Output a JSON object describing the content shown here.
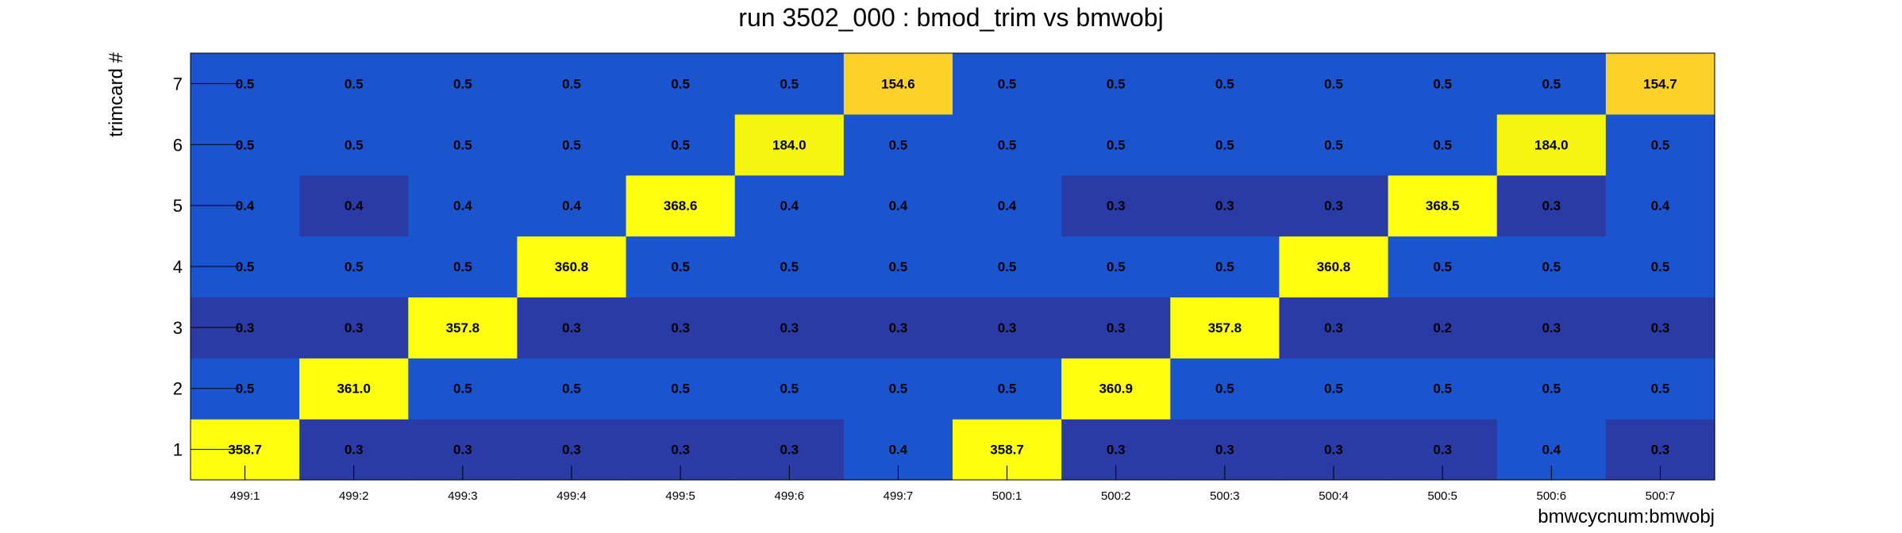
{
  "chart_data": {
    "type": "heatmap",
    "title": "run 3502_000 : bmod_trim vs bmwobj",
    "xlabel": "bmwcycnum:bmwobj",
    "ylabel": "trimcard #",
    "x_categories": [
      "499:1",
      "499:2",
      "499:3",
      "499:4",
      "499:5",
      "499:6",
      "499:7",
      "500:1",
      "500:2",
      "500:3",
      "500:4",
      "500:5",
      "500:6",
      "500:7"
    ],
    "y_categories": [
      "1",
      "2",
      "3",
      "4",
      "5",
      "6",
      "7"
    ],
    "values": [
      [
        358.7,
        0.3,
        0.3,
        0.3,
        0.3,
        0.3,
        0.4,
        358.7,
        0.3,
        0.3,
        0.3,
        0.3,
        0.4,
        0.3
      ],
      [
        0.5,
        361.0,
        0.5,
        0.5,
        0.5,
        0.5,
        0.5,
        0.5,
        360.9,
        0.5,
        0.5,
        0.5,
        0.5,
        0.5
      ],
      [
        0.3,
        0.3,
        357.8,
        0.3,
        0.3,
        0.3,
        0.3,
        0.3,
        0.3,
        357.8,
        0.3,
        0.2,
        0.3,
        0.3
      ],
      [
        0.5,
        0.5,
        0.5,
        360.8,
        0.5,
        0.5,
        0.5,
        0.5,
        0.5,
        0.5,
        360.8,
        0.5,
        0.5,
        0.5
      ],
      [
        0.4,
        0.4,
        0.4,
        0.4,
        368.6,
        0.4,
        0.4,
        0.4,
        0.3,
        0.3,
        0.3,
        368.5,
        0.3,
        0.4
      ],
      [
        0.5,
        0.5,
        0.5,
        0.5,
        0.5,
        184.0,
        0.5,
        0.5,
        0.5,
        0.5,
        0.5,
        0.5,
        184.0,
        0.5
      ],
      [
        0.5,
        0.5,
        0.5,
        0.5,
        0.5,
        0.5,
        154.6,
        0.5,
        0.5,
        0.5,
        0.5,
        0.5,
        0.5,
        154.7
      ]
    ],
    "value_labels": [
      [
        "358.7",
        "0.3",
        "0.3",
        "0.3",
        "0.3",
        "0.3",
        "0.4",
        "358.7",
        "0.3",
        "0.3",
        "0.3",
        "0.3",
        "0.4",
        "0.3"
      ],
      [
        "0.5",
        "361.0",
        "0.5",
        "0.5",
        "0.5",
        "0.5",
        "0.5",
        "0.5",
        "360.9",
        "0.5",
        "0.5",
        "0.5",
        "0.5",
        "0.5"
      ],
      [
        "0.3",
        "0.3",
        "357.8",
        "0.3",
        "0.3",
        "0.3",
        "0.3",
        "0.3",
        "0.3",
        "357.8",
        "0.3",
        "0.2",
        "0.3",
        "0.3"
      ],
      [
        "0.5",
        "0.5",
        "0.5",
        "360.8",
        "0.5",
        "0.5",
        "0.5",
        "0.5",
        "0.5",
        "0.5",
        "360.8",
        "0.5",
        "0.5",
        "0.5"
      ],
      [
        "0.4",
        "0.4",
        "0.4",
        "0.4",
        "368.6",
        "0.4",
        "0.4",
        "0.4",
        "0.3",
        "0.3",
        "0.3",
        "368.5",
        "0.3",
        "0.4"
      ],
      [
        "0.5",
        "0.5",
        "0.5",
        "0.5",
        "0.5",
        "184.0",
        "0.5",
        "0.5",
        "0.5",
        "0.5",
        "0.5",
        "0.5",
        "184.0",
        "0.5"
      ],
      [
        "0.5",
        "0.5",
        "0.5",
        "0.5",
        "0.5",
        "0.5",
        "154.6",
        "0.5",
        "0.5",
        "0.5",
        "0.5",
        "0.5",
        "0.5",
        "154.7"
      ]
    ],
    "colors": {
      "very_low": "#2a3ba6",
      "low": "#1a54cf",
      "mid_high": "#fbd12a",
      "high": "#f5f50f",
      "very_high": "#ffff10"
    },
    "grid": false,
    "legend": "none"
  }
}
